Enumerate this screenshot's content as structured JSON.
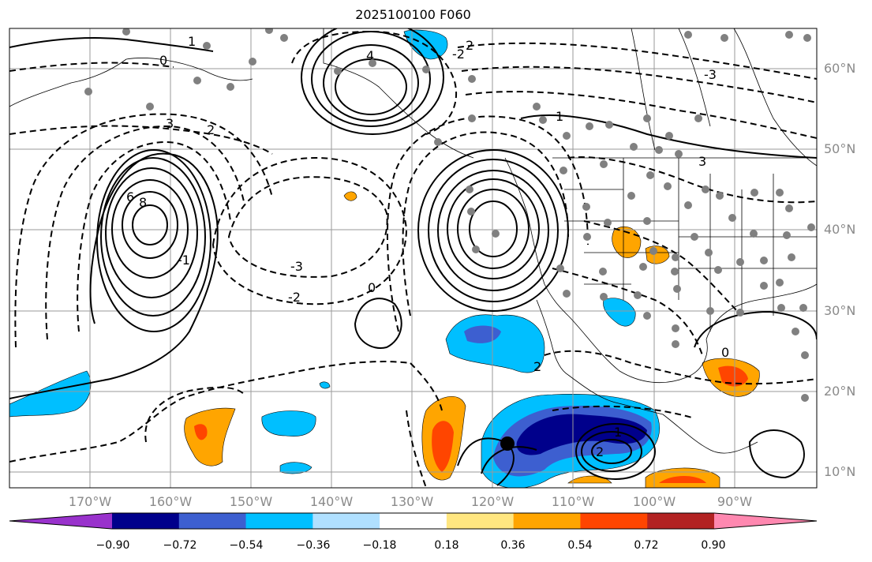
{
  "title": "2025100100 F060",
  "lat_labels": [
    "60°N",
    "50°N",
    "40°N",
    "30°N",
    "20°N",
    "10°N"
  ],
  "lon_labels": [
    "170°W",
    "160°W",
    "150°W",
    "140°W",
    "130°W",
    "120°W",
    "110°W",
    "100°W",
    "90°W"
  ],
  "colorbar": {
    "colors": [
      "#9932cc",
      "#00008b",
      "#3d5fd0",
      "#00bfff",
      "#b0e0ff",
      "#ffffff",
      "#ffe680",
      "#ffa500",
      "#ff4500",
      "#b22222",
      "#ff88b0"
    ],
    "ticks": [
      "−0.90",
      "−0.72",
      "−0.54",
      "−0.36",
      "−0.18",
      "0.18",
      "0.36",
      "0.54",
      "0.72",
      "0.90"
    ]
  },
  "contour_labels": [
    "0",
    "1",
    "2",
    "3",
    "4",
    "6",
    "8",
    "-1",
    "-2",
    "-3",
    "2",
    "3",
    "1",
    "0",
    "1",
    "2",
    "2",
    "-2",
    "-3",
    "0"
  ]
}
